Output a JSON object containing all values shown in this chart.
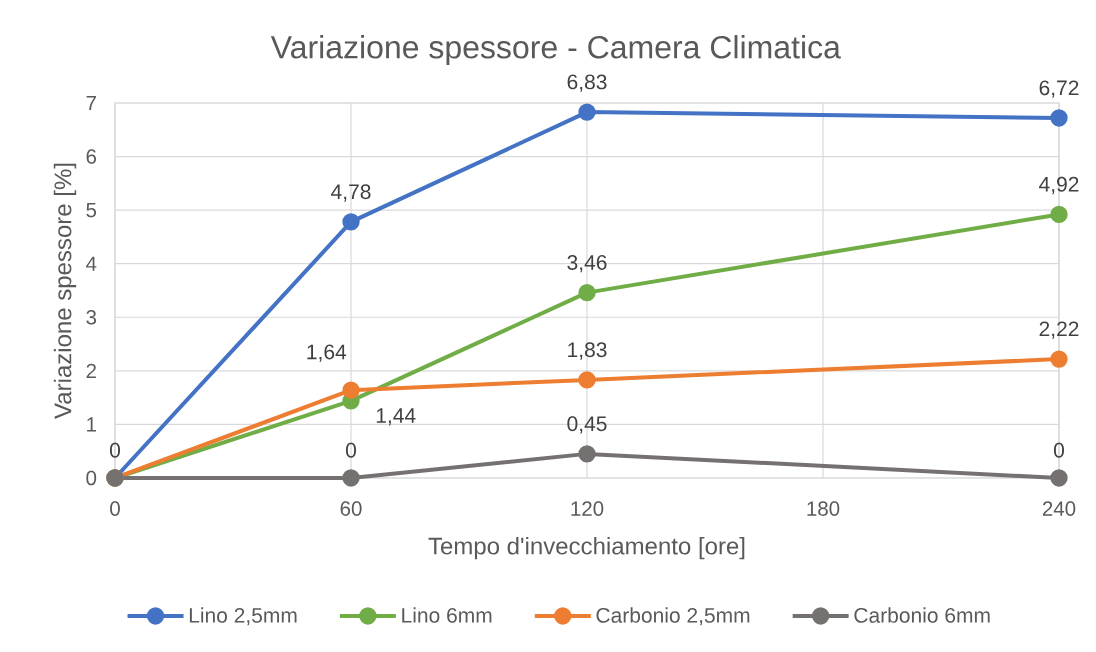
{
  "chart_data": {
    "type": "line",
    "title": "Variazione spessore - Camera Climatica",
    "xlabel": "Tempo d'invecchiamento [ore]",
    "ylabel": "Variazione spessore [%]",
    "x": [
      0,
      60,
      120,
      240
    ],
    "xlim": [
      0,
      240
    ],
    "xticks": [
      0,
      60,
      120,
      180,
      240
    ],
    "ylim": [
      0,
      7
    ],
    "yticks": [
      0,
      1,
      2,
      3,
      4,
      5,
      6,
      7
    ],
    "grid": true,
    "legend": "bottom",
    "marker": "circle",
    "line_style": "solid",
    "series": [
      {
        "name": "Lino 2,5mm",
        "color": "#4472c4",
        "values": [
          0,
          4.78,
          6.83,
          6.72
        ],
        "value_labels": [
          null,
          "4,78",
          "6,83",
          "6,72"
        ]
      },
      {
        "name": "Lino 6mm",
        "color": "#70ad47",
        "values": [
          0,
          1.44,
          3.46,
          4.92
        ],
        "value_labels": [
          null,
          "1,44",
          "3,46",
          "4,92"
        ]
      },
      {
        "name": "Carbonio 2,5mm",
        "color": "#ed7d31",
        "values": [
          0,
          1.64,
          1.83,
          2.22
        ],
        "value_labels": [
          null,
          "1,64",
          "1,83",
          "2,22"
        ]
      },
      {
        "name": "Carbonio 6mm",
        "color": "#767171",
        "values": [
          0,
          0,
          0.45,
          0
        ],
        "value_labels": [
          "0",
          "0",
          "0,45",
          "0"
        ]
      }
    ]
  }
}
